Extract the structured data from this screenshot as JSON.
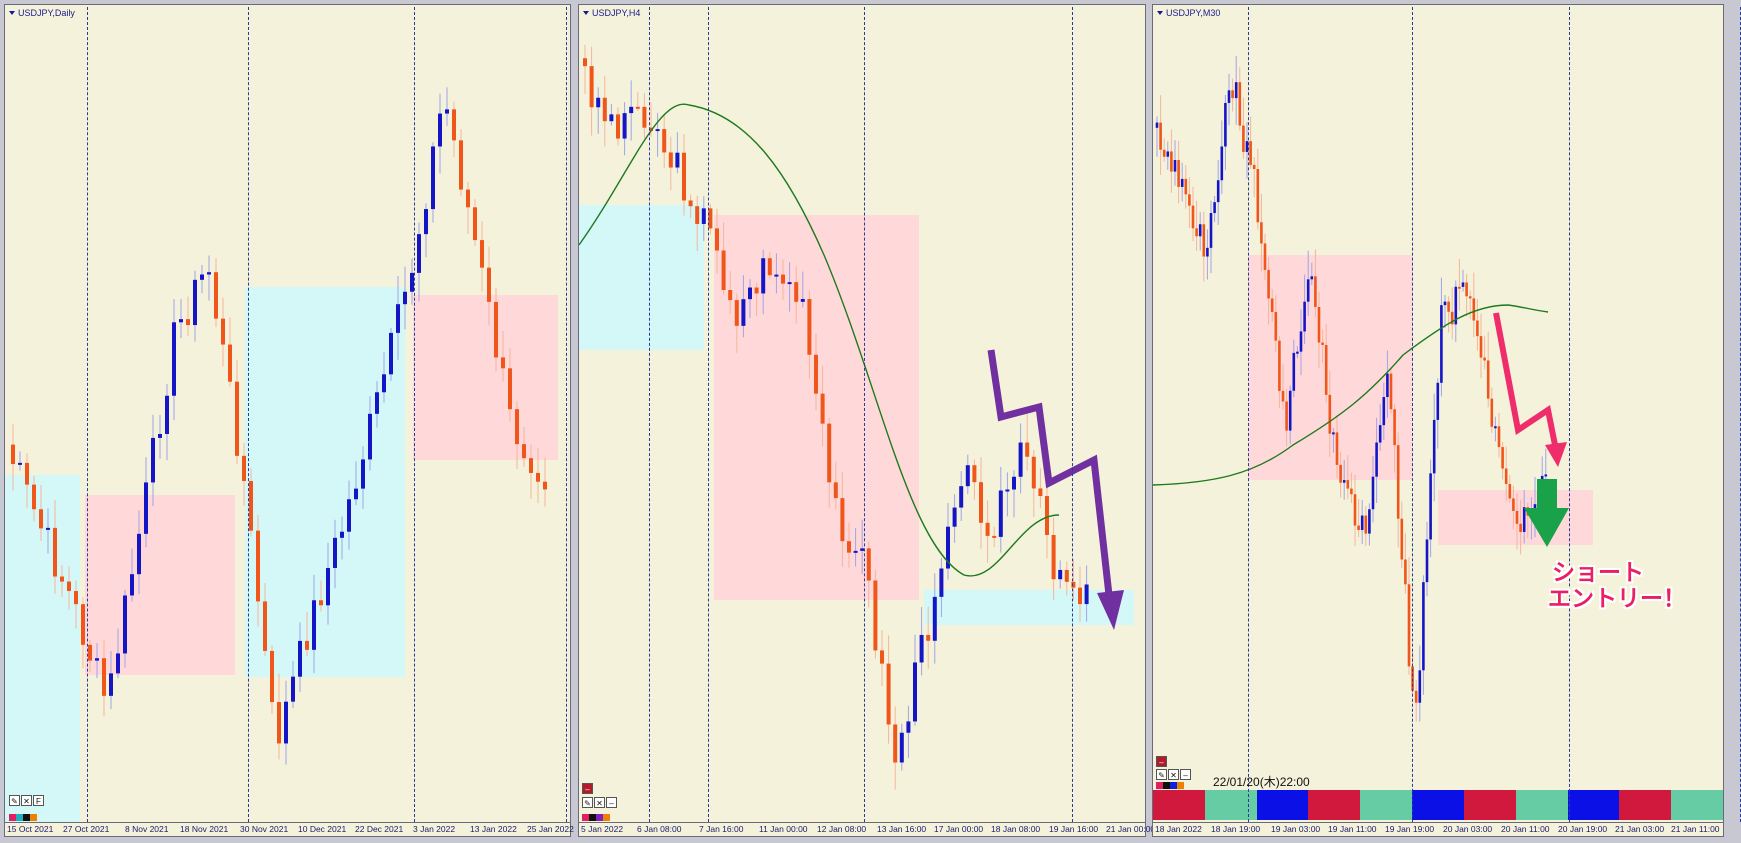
{
  "panels": [
    {
      "title": "USDJPY,Daily",
      "ticks": [
        "15 Oct 2021",
        "27 Oct 2021",
        "8 Nov 2021",
        "18 Nov 2021",
        "30 Nov 2021",
        "10 Dec 2021",
        "22 Dec 2021",
        "3 Jan 2022",
        "13 Jan 2022",
        "25 Jan 2022"
      ],
      "toolbar": [
        "brush",
        "close",
        "F"
      ]
    },
    {
      "title": "USDJPY,H4",
      "ticks": [
        "5 Jan 2022",
        "6 Jan 08:00",
        "7 Jan 16:00",
        "11 Jan 00:00",
        "12 Jan 08:00",
        "13 Jan 16:00",
        "17 Jan 00:00",
        "18 Jan 08:00",
        "19 Jan 16:00",
        "21 Jan 00:00"
      ],
      "toolbar": [
        "brush",
        "close",
        "minimize"
      ]
    },
    {
      "title": "USDJPY,M30",
      "ticks": [
        "18 Jan 2022",
        "18 Jan 19:00",
        "19 Jan 03:00",
        "19 Jan 11:00",
        "19 Jan 19:00",
        "20 Jan 03:00",
        "20 Jan 11:00",
        "20 Jan 19:00",
        "21 Jan 03:00",
        "21 Jan 11:00"
      ],
      "toolbar": [
        "brush",
        "close",
        "minimize"
      ],
      "timestamp": "22/01/20(木)22:00"
    }
  ],
  "annotation": {
    "line1": "ショート",
    "line2": "エントリー！"
  },
  "colors": {
    "bull": "#1515c8",
    "bear": "#f0551a",
    "ma": "#1e7a1e",
    "bg": "#f5f2dc",
    "supply_zone": "#ffd9d9",
    "demand_zone": "#d4f8f8",
    "arrow_purple": "#7030a0",
    "arrow_pink": "#ee2d6a",
    "arrow_green": "#1aa24a"
  },
  "session_bar": [
    "#d1193d",
    "#66cca4",
    "#0b10e6",
    "#d1193d",
    "#66cca4",
    "#0b10e6",
    "#d1193d",
    "#66cca4",
    "#0b10e6",
    "#d1193d",
    "#66cca4"
  ]
}
